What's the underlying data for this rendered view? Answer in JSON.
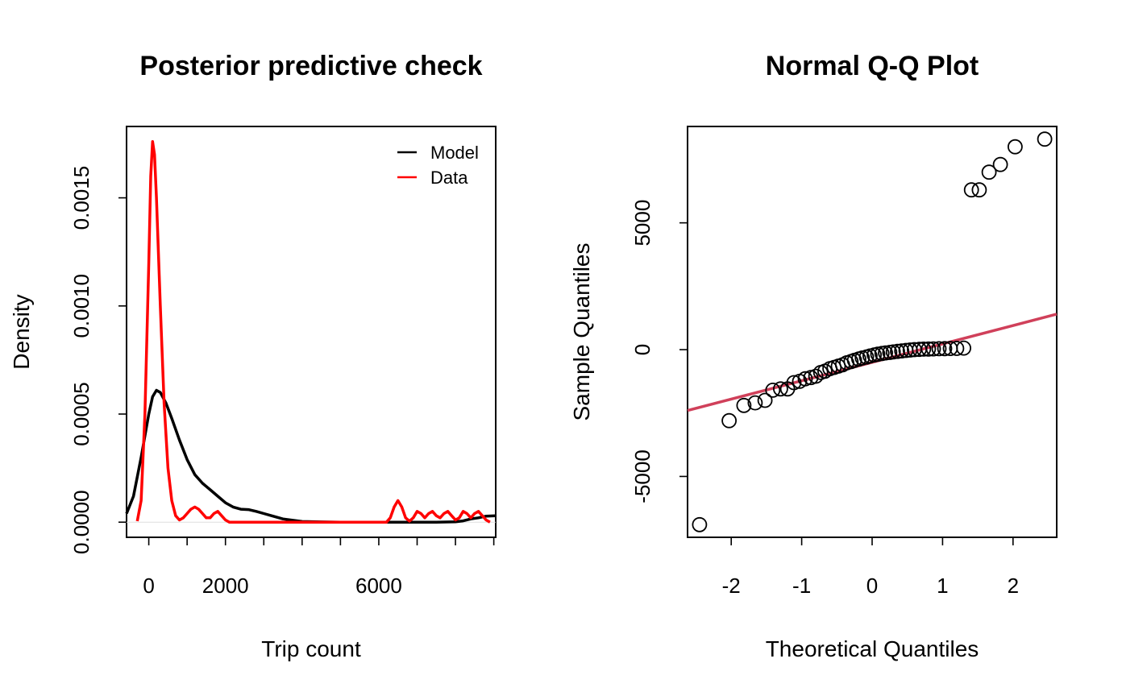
{
  "chart_data": [
    {
      "type": "line",
      "title": "Posterior predictive check",
      "xlabel": "Trip count",
      "ylabel": "Density",
      "xlim": [
        -580,
        9050
      ],
      "ylim": [
        -7e-05,
        0.00183
      ],
      "x_ticks": [
        {
          "value": 0,
          "label": "0"
        },
        {
          "value": 1000,
          "label": ""
        },
        {
          "value": 2000,
          "label": "2000"
        },
        {
          "value": 3000,
          "label": ""
        },
        {
          "value": 4000,
          "label": ""
        },
        {
          "value": 5000,
          "label": ""
        },
        {
          "value": 6000,
          "label": "6000"
        },
        {
          "value": 7000,
          "label": ""
        },
        {
          "value": 8000,
          "label": ""
        },
        {
          "value": 9000,
          "label": ""
        }
      ],
      "y_ticks": [
        {
          "value": 0.0,
          "label": "0.0000"
        },
        {
          "value": 0.0005,
          "label": "0.0005"
        },
        {
          "value": 0.001,
          "label": "0.0010"
        },
        {
          "value": 0.0015,
          "label": "0.0015"
        }
      ],
      "legend": {
        "position": "top-right",
        "entries": [
          {
            "name": "Model",
            "color": "#000000"
          },
          {
            "name": "Data",
            "color": "#ff0000"
          }
        ]
      },
      "series": [
        {
          "name": "Model",
          "color": "#000000",
          "x": [
            -580,
            -400,
            -200,
            0,
            100,
            200,
            300,
            450,
            600,
            800,
            1000,
            1200,
            1400,
            1600,
            1800,
            2000,
            2200,
            2400,
            2600,
            2800,
            3000,
            3200,
            3500,
            4000,
            4500,
            5000,
            6000,
            7000,
            7500,
            8000,
            8200,
            8400,
            8600,
            8800,
            9050
          ],
          "y": [
            4e-05,
            0.00012,
            0.0003,
            0.0005,
            0.00058,
            0.00061,
            0.0006,
            0.00055,
            0.00048,
            0.00038,
            0.00029,
            0.00022,
            0.00018,
            0.00015,
            0.00012,
            9e-05,
            7e-05,
            6e-05,
            5.8e-05,
            5e-05,
            4e-05,
            3e-05,
            1.5e-05,
            3e-06,
            1e-06,
            0.0,
            0.0,
            0.0,
            0.0,
            2e-06,
            6e-06,
            1.5e-05,
            2e-05,
            2.8e-05,
            3e-05
          ]
        },
        {
          "name": "Data",
          "color": "#ff0000",
          "x": [
            -300,
            -200,
            -100,
            0,
            50,
            100,
            150,
            200,
            300,
            400,
            500,
            600,
            700,
            800,
            900,
            1000,
            1100,
            1200,
            1300,
            1400,
            1500,
            1600,
            1700,
            1800,
            1900,
            2000,
            2100,
            2200,
            2400,
            3000,
            4000,
            5000,
            6000,
            6200,
            6300,
            6400,
            6500,
            6600,
            6700,
            6800,
            6900,
            7000,
            7100,
            7200,
            7300,
            7400,
            7500,
            7600,
            7700,
            7800,
            7900,
            8000,
            8100,
            8200,
            8300,
            8400,
            8500,
            8600,
            8700,
            8800,
            8900
          ],
          "y": [
            5e-06,
            0.0001,
            0.0005,
            0.0012,
            0.0016,
            0.00176,
            0.0017,
            0.0015,
            0.001,
            0.00055,
            0.00025,
            0.0001,
            3e-05,
            1e-05,
            2e-05,
            4e-05,
            6e-05,
            7e-05,
            6e-05,
            4e-05,
            2e-05,
            2e-05,
            4e-05,
            5e-05,
            3e-05,
            1e-05,
            0.0,
            0.0,
            0.0,
            0.0,
            0.0,
            0.0,
            0.0,
            0.0,
            2e-05,
            7e-05,
            0.0001,
            7e-05,
            2e-05,
            5e-06,
            2e-05,
            5e-05,
            4e-05,
            2e-05,
            4e-05,
            5e-05,
            3e-05,
            2e-05,
            4e-05,
            5e-05,
            3e-05,
            1e-05,
            2e-05,
            5e-05,
            4e-05,
            2e-05,
            4e-05,
            5e-05,
            3e-05,
            1e-05,
            0.0
          ]
        }
      ]
    },
    {
      "type": "scatter",
      "title": "Normal Q-Q Plot",
      "xlabel": "Theoretical Quantiles",
      "ylabel": "Sample Quantiles",
      "xlim": [
        -2.62,
        2.62
      ],
      "ylim": [
        -7400,
        8800
      ],
      "x_ticks": [
        {
          "value": -2,
          "label": "-2"
        },
        {
          "value": -1,
          "label": "-1"
        },
        {
          "value": 0,
          "label": "0"
        },
        {
          "value": 1,
          "label": "1"
        },
        {
          "value": 2,
          "label": "2"
        }
      ],
      "y_ticks": [
        {
          "value": -5000,
          "label": "-5000"
        },
        {
          "value": 0,
          "label": "0"
        },
        {
          "value": 5000,
          "label": "5000"
        }
      ],
      "reference_line": {
        "color": "#d0405a",
        "x": [
          -2.62,
          2.62
        ],
        "y": [
          -2400,
          1400
        ]
      },
      "points": [
        {
          "x": -2.45,
          "y": -6900
        },
        {
          "x": -2.03,
          "y": -2800
        },
        {
          "x": -1.82,
          "y": -2200
        },
        {
          "x": -1.66,
          "y": -2100
        },
        {
          "x": -1.52,
          "y": -2000
        },
        {
          "x": -1.41,
          "y": -1600
        },
        {
          "x": -1.3,
          "y": -1550
        },
        {
          "x": -1.2,
          "y": -1550
        },
        {
          "x": -1.11,
          "y": -1300
        },
        {
          "x": -1.03,
          "y": -1250
        },
        {
          "x": -0.95,
          "y": -1150
        },
        {
          "x": -0.87,
          "y": -1100
        },
        {
          "x": -0.8,
          "y": -1050
        },
        {
          "x": -0.73,
          "y": -900
        },
        {
          "x": -0.67,
          "y": -850
        },
        {
          "x": -0.6,
          "y": -750
        },
        {
          "x": -0.54,
          "y": -700
        },
        {
          "x": -0.48,
          "y": -650
        },
        {
          "x": -0.42,
          "y": -600
        },
        {
          "x": -0.36,
          "y": -520
        },
        {
          "x": -0.3,
          "y": -470
        },
        {
          "x": -0.25,
          "y": -420
        },
        {
          "x": -0.19,
          "y": -370
        },
        {
          "x": -0.14,
          "y": -330
        },
        {
          "x": -0.08,
          "y": -290
        },
        {
          "x": -0.03,
          "y": -250
        },
        {
          "x": 0.03,
          "y": -210
        },
        {
          "x": 0.08,
          "y": -180
        },
        {
          "x": 0.14,
          "y": -150
        },
        {
          "x": 0.19,
          "y": -130
        },
        {
          "x": 0.25,
          "y": -110
        },
        {
          "x": 0.3,
          "y": -90
        },
        {
          "x": 0.36,
          "y": -70
        },
        {
          "x": 0.42,
          "y": -50
        },
        {
          "x": 0.48,
          "y": -30
        },
        {
          "x": 0.54,
          "y": -15
        },
        {
          "x": 0.6,
          "y": 0
        },
        {
          "x": 0.67,
          "y": 10
        },
        {
          "x": 0.73,
          "y": 20
        },
        {
          "x": 0.8,
          "y": 25
        },
        {
          "x": 0.87,
          "y": 30
        },
        {
          "x": 0.95,
          "y": 35
        },
        {
          "x": 1.03,
          "y": 40
        },
        {
          "x": 1.11,
          "y": 45
        },
        {
          "x": 1.2,
          "y": 50
        },
        {
          "x": 1.3,
          "y": 60
        },
        {
          "x": 1.41,
          "y": 6300
        },
        {
          "x": 1.52,
          "y": 6300
        },
        {
          "x": 1.66,
          "y": 7000
        },
        {
          "x": 1.82,
          "y": 7300
        },
        {
          "x": 2.03,
          "y": 8000
        },
        {
          "x": 2.45,
          "y": 8300
        }
      ]
    }
  ]
}
